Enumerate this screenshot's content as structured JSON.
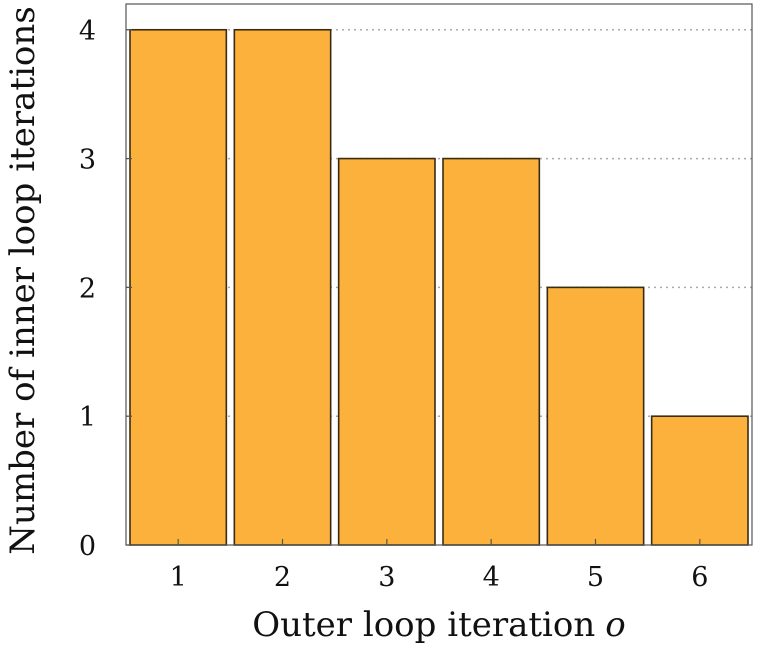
{
  "chart_data": {
    "type": "bar",
    "categories": [
      "1",
      "2",
      "3",
      "4",
      "5",
      "6"
    ],
    "values": [
      4,
      4,
      3,
      3,
      2,
      1
    ],
    "xlabel": "Outer loop iteration",
    "xlabel_var": "o",
    "ylabel": "Number of inner loop iterations",
    "ylim": [
      0,
      4.2
    ],
    "yticks": [
      "0",
      "1",
      "2",
      "3",
      "4"
    ],
    "grid": "horizontal dotted",
    "legend": "none"
  },
  "colors": {
    "bar_fill": "#fbb13c",
    "bar_stroke": "#3a2c12",
    "grid": "#aaaaaa",
    "axis": "#555555"
  }
}
